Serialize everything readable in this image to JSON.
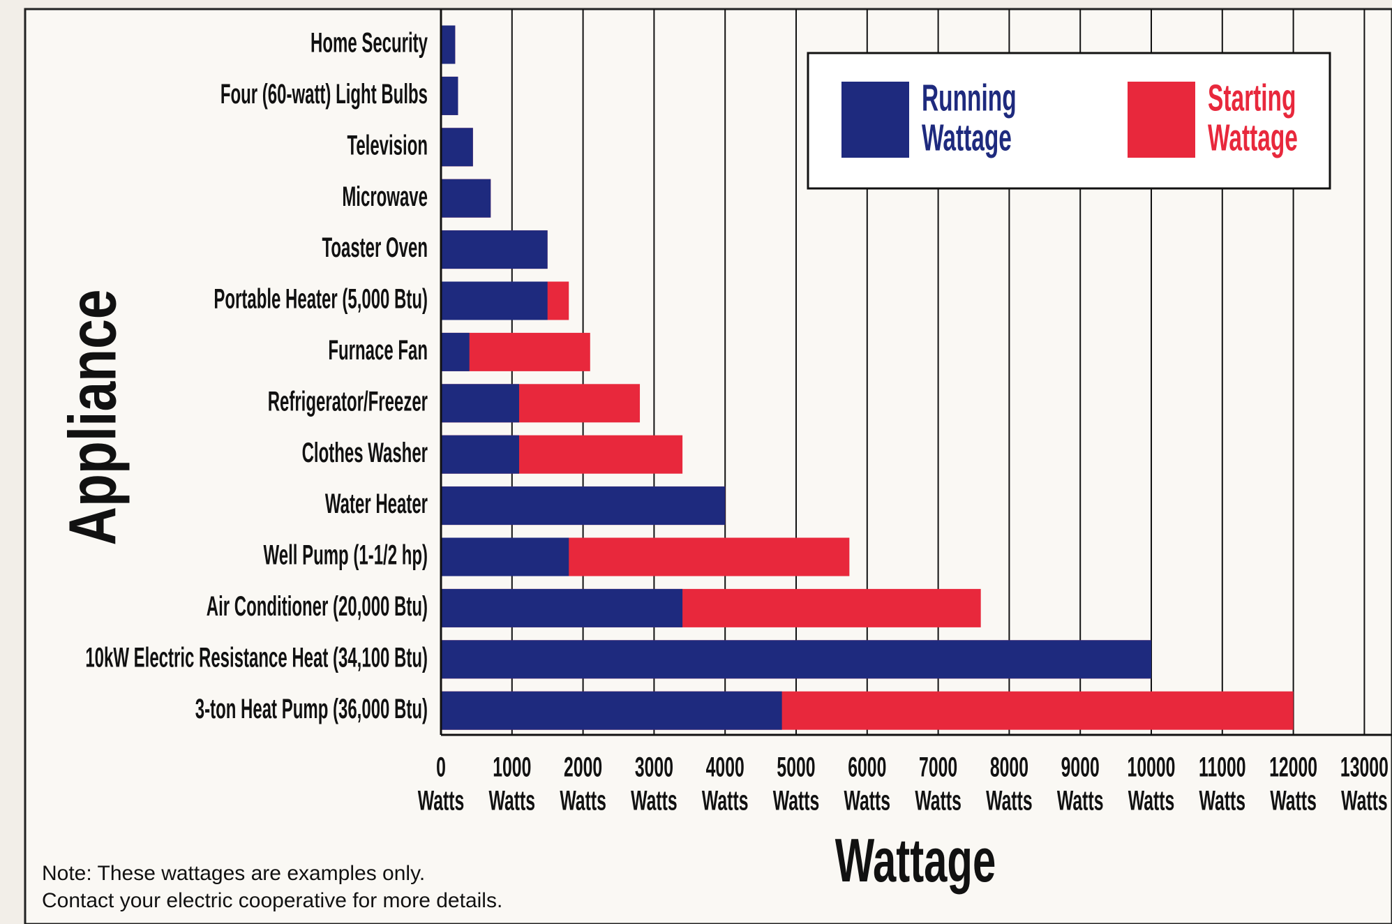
{
  "chart_data": {
    "type": "bar",
    "orientation": "horizontal",
    "overlay": true,
    "y_label": "Appliance",
    "x_label": "Wattage",
    "categories": [
      "Home Security",
      "Four (60-watt) Light Bulbs",
      "Television",
      "Microwave",
      "Toaster Oven",
      "Portable Heater (5,000 Btu)",
      "Furnace Fan",
      "Refrigerator/Freezer",
      "Clothes Washer",
      "Water Heater",
      "Well Pump (1-1/2 hp)",
      "Air Conditioner (20,000 Btu)",
      "10kW Electric Resistance Heat (34,100 Btu)",
      "3-ton Heat Pump (36,000 Btu)"
    ],
    "series": [
      {
        "name": "Starting Wattage",
        "color": "#e8283c",
        "values": [
          200,
          240,
          450,
          700,
          1500,
          1800,
          2100,
          2800,
          3400,
          4000,
          5750,
          7600,
          10000,
          12000
        ]
      },
      {
        "name": "Running Wattage",
        "color": "#1e2a7e",
        "values": [
          200,
          240,
          450,
          700,
          1500,
          1500,
          400,
          1100,
          1100,
          4000,
          1800,
          3400,
          10000,
          4800
        ]
      }
    ],
    "xlim": [
      0,
      13000
    ],
    "xticks": [
      0,
      1000,
      2000,
      3000,
      4000,
      5000,
      6000,
      7000,
      8000,
      9000,
      10000,
      11000,
      12000,
      13000
    ],
    "x_tick_unit": "Watts",
    "grid": true,
    "legend": "upper right",
    "note": [
      "Note: These wattages are examples only.",
      "Contact your electric cooperative for more details."
    ]
  }
}
